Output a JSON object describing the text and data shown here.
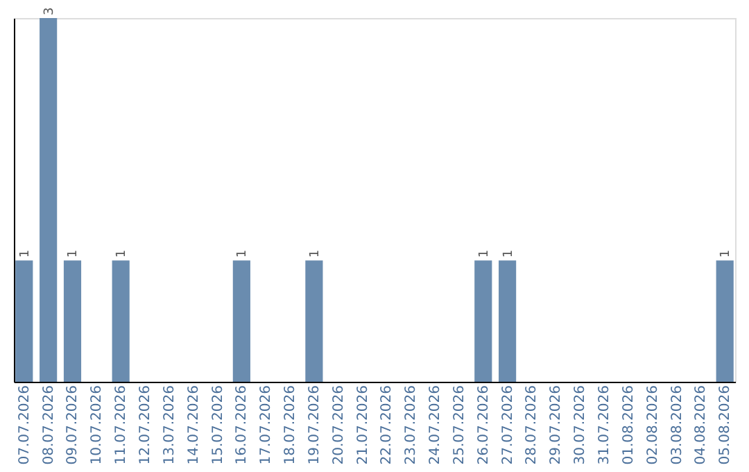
{
  "chart_data": {
    "type": "bar",
    "categories": [
      "07.07.2026",
      "08.07.2026",
      "09.07.2026",
      "10.07.2026",
      "11.07.2026",
      "12.07.2026",
      "13.07.2026",
      "14.07.2026",
      "15.07.2026",
      "16.07.2026",
      "17.07.2026",
      "18.07.2026",
      "19.07.2026",
      "20.07.2026",
      "21.07.2026",
      "22.07.2026",
      "23.07.2026",
      "24.07.2026",
      "25.07.2026",
      "26.07.2026",
      "27.07.2026",
      "28.07.2026",
      "29.07.2026",
      "30.07.2026",
      "31.07.2026",
      "01.08.2026",
      "02.08.2026",
      "03.08.2026",
      "04.08.2026",
      "05.08.2026"
    ],
    "values": [
      1,
      3,
      1,
      0,
      1,
      0,
      0,
      0,
      0,
      1,
      0,
      0,
      1,
      0,
      0,
      0,
      0,
      0,
      0,
      1,
      1,
      0,
      0,
      0,
      0,
      0,
      0,
      0,
      0,
      1
    ],
    "value_labels": [
      "1",
      "3",
      "1",
      null,
      "1",
      null,
      null,
      null,
      null,
      "1",
      null,
      null,
      "1",
      null,
      null,
      null,
      null,
      null,
      null,
      "1",
      "1",
      null,
      null,
      null,
      null,
      null,
      null,
      null,
      null,
      "1"
    ],
    "color": "#6a8caf",
    "tick_labels": "x",
    "grid": false
  }
}
